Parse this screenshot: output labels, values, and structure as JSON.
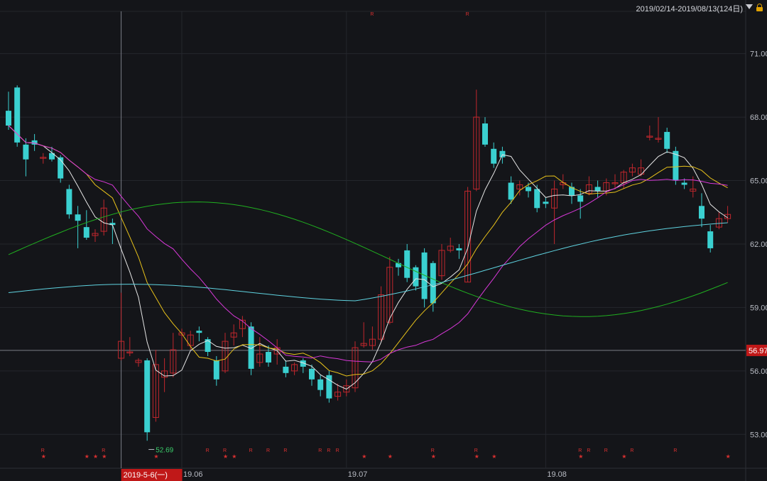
{
  "header": {
    "date_range_label": "2019/02/14-2019/08/13(124日)"
  },
  "price_tag": "56.97",
  "cursor_date_label": "2019-5-6(一)",
  "min_low_label": "52.69",
  "colors": {
    "background": "#141519",
    "grid": "#24262c",
    "up": "#c0272d",
    "down": "#3ad0d0",
    "ma5": "#e6e6e6",
    "ma10": "#e8c21a",
    "ma20": "#d838d8",
    "ma60": "#20b020",
    "ma120": "#5fd3e0",
    "marker_r": "#d83030",
    "price_tag_bg": "#c01818"
  },
  "chart_data": {
    "type": "candlestick",
    "y_ticks": [
      "71.00",
      "68.00",
      "65.00",
      "62.00",
      "59.00",
      "56.00",
      "53.00"
    ],
    "y_tick_values": [
      71,
      68,
      65,
      62,
      59,
      56,
      53
    ],
    "ylim": [
      51.4,
      73.0
    ],
    "x_ticks": [
      {
        "label": "19.06",
        "index": 20
      },
      {
        "label": "19.07",
        "index": 39
      },
      {
        "label": "19.08",
        "index": 62
      }
    ],
    "current_price": 56.97,
    "min_low": 52.69,
    "candles": [
      [
        68.3,
        67.6,
        69.2,
        67.4
      ],
      [
        69.4,
        66.8,
        69.5,
        66.6
      ],
      [
        66.7,
        66.0,
        67.0,
        65.2
      ],
      [
        66.9,
        66.7,
        67.2,
        66.4
      ],
      [
        66.1,
        66.1,
        66.3,
        65.8
      ],
      [
        66.3,
        66.0,
        66.6,
        65.9
      ],
      [
        66.1,
        65.1,
        66.2,
        64.9
      ],
      [
        64.6,
        63.4,
        64.8,
        63.2
      ],
      [
        63.4,
        63.1,
        63.8,
        61.8
      ],
      [
        62.8,
        62.3,
        63.6,
        62.2
      ],
      [
        62.4,
        62.5,
        62.7,
        62.1
      ],
      [
        62.6,
        63.7,
        64.1,
        62.4
      ],
      [
        63.0,
        62.9,
        63.2,
        62.0
      ],
      [
        56.6,
        57.4,
        59.7,
        56.5
      ],
      [
        56.9,
        56.9,
        57.6,
        56.7
      ],
      [
        56.4,
        56.5,
        56.6,
        56.2
      ],
      [
        56.5,
        53.1,
        56.6,
        52.7
      ],
      [
        53.8,
        56.3,
        57.0,
        53.6
      ],
      [
        55.7,
        56.0,
        56.6,
        55.0
      ],
      [
        55.9,
        57.0,
        57.8,
        55.7
      ],
      [
        57.7,
        57.8,
        58.0,
        57.0
      ],
      [
        57.2,
        57.7,
        57.9,
        57.0
      ],
      [
        57.9,
        57.8,
        58.1,
        57.4
      ],
      [
        57.5,
        56.9,
        57.6,
        56.7
      ],
      [
        56.5,
        55.6,
        56.7,
        55.3
      ],
      [
        56.0,
        57.4,
        57.8,
        55.9
      ],
      [
        57.6,
        57.8,
        58.2,
        57.2
      ],
      [
        58.0,
        58.4,
        58.6,
        57.6
      ],
      [
        58.1,
        56.1,
        58.3,
        55.8
      ],
      [
        56.4,
        56.8,
        57.6,
        56.2
      ]
    ],
    "ma_series": [
      {
        "name": "MA5",
        "color": "#e6e6e6"
      },
      {
        "name": "MA10",
        "color": "#e8c21a"
      },
      {
        "name": "MA20",
        "color": "#d838d8"
      },
      {
        "name": "MA60",
        "color": "#20b020"
      },
      {
        "name": "MA120",
        "color": "#5fd3e0"
      }
    ],
    "marker_rows": [
      {
        "symbol": "R",
        "indices": [
          4,
          11,
          23,
          25,
          28,
          30,
          32,
          36,
          37,
          38,
          49,
          54,
          66,
          67,
          69,
          72,
          77
        ]
      },
      {
        "symbol": "★",
        "indices": [
          4,
          9,
          10,
          11,
          17,
          25,
          26,
          41,
          44,
          49,
          54,
          56,
          66,
          71,
          83
        ]
      }
    ],
    "top_markers_R": [
      42,
      53
    ]
  }
}
